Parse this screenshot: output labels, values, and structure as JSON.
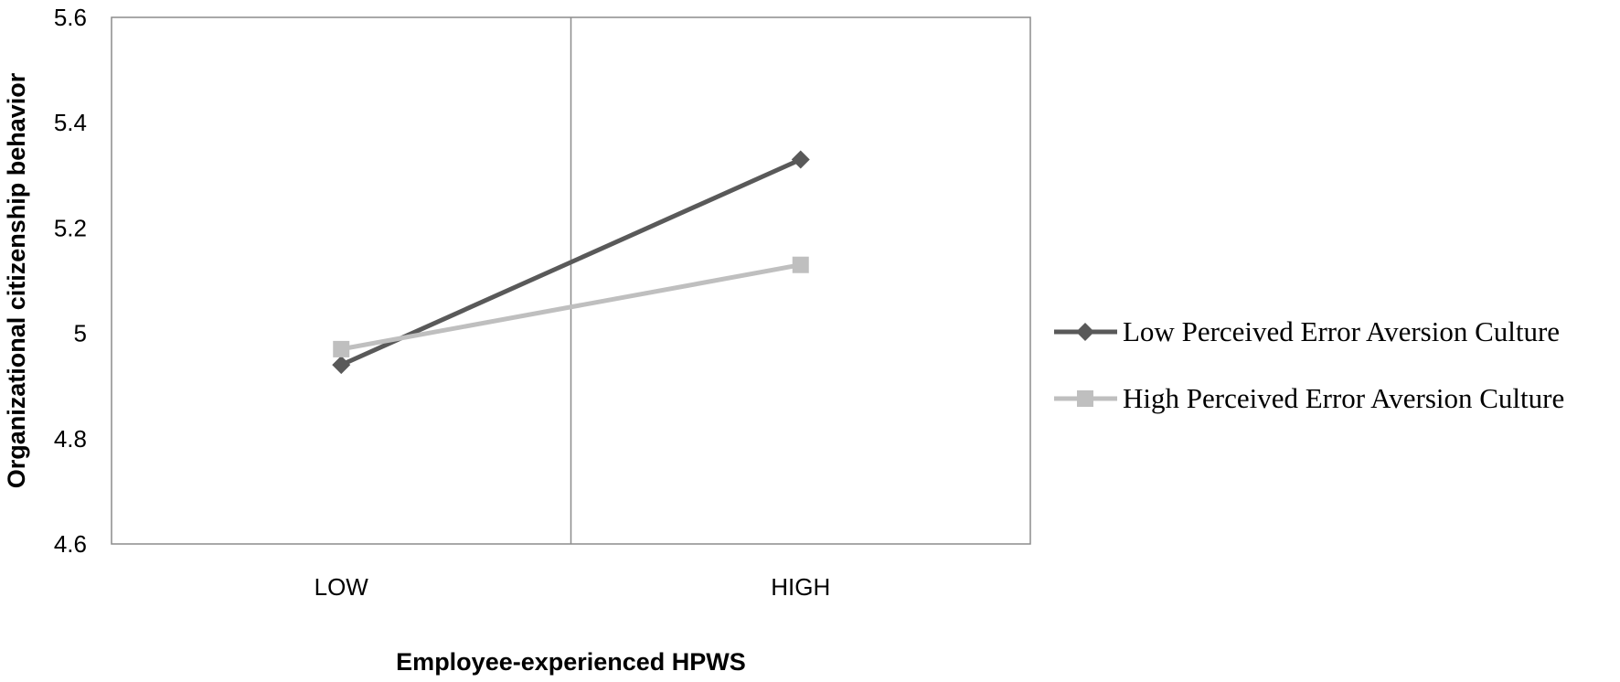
{
  "chart_data": {
    "type": "line",
    "title": "",
    "xlabel": "Employee-experienced HPWS",
    "ylabel": "Organizational citizenship behavior",
    "categories": [
      "LOW",
      "HIGH"
    ],
    "ylim": [
      4.6,
      5.6
    ],
    "yticks": [
      "4.6",
      "4.8",
      "5",
      "5.2",
      "5.4",
      "5.6"
    ],
    "grid": false,
    "legend_position": "right",
    "series": [
      {
        "name": "Low Perceived Error Aversion Culture",
        "values": [
          4.94,
          5.33
        ],
        "color": "#595959",
        "marker": "diamond"
      },
      {
        "name": "High Perceived Error Aversion Culture",
        "values": [
          4.97,
          5.13
        ],
        "color": "#bfbfbf",
        "marker": "square"
      }
    ]
  }
}
